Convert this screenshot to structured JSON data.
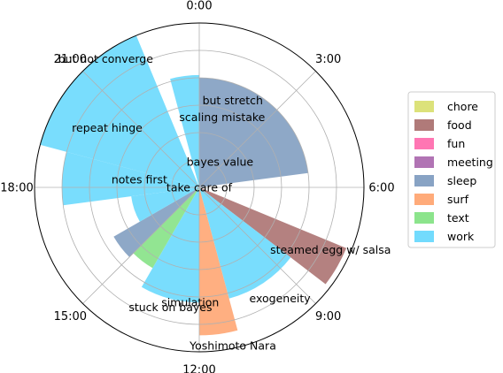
{
  "chart_data": {
    "type": "polar-bar",
    "title": "",
    "hour_labels": [
      "0:00",
      "3:00",
      "6:00",
      "9:00",
      "12:00",
      "15:00",
      "18:00",
      "21:00"
    ],
    "radial_ticks": [
      1,
      2,
      3,
      4,
      5
    ],
    "rmax": 6,
    "grid": true,
    "legend_position": "right",
    "categories": [
      {
        "name": "chore",
        "color": "#dce27a"
      },
      {
        "name": "food",
        "color": "#b07a79"
      },
      {
        "name": "fun",
        "color": "#ff76b3"
      },
      {
        "name": "meeting",
        "color": "#b174b4"
      },
      {
        "name": "sleep",
        "color": "#88a3c4"
      },
      {
        "name": "surf",
        "color": "#ffab7a"
      },
      {
        "name": "text",
        "color": "#8ce48c"
      },
      {
        "name": "work",
        "color": "#72dbfd"
      }
    ],
    "wedges": [
      {
        "start_hour": 0,
        "end_hour": 5.5,
        "r": 4,
        "category": "sleep"
      },
      {
        "start_hour": 7.5,
        "end_hour": 8.5,
        "r": 5.8,
        "category": "food"
      },
      {
        "start_hour": 8.5,
        "end_hour": 11,
        "r": 4.2,
        "category": "work"
      },
      {
        "start_hour": 11,
        "end_hour": 12,
        "r": 5.4,
        "category": "surf"
      },
      {
        "start_hour": 12,
        "end_hour": 14,
        "r": 4.2,
        "category": "work"
      },
      {
        "start_hour": 14,
        "end_hour": 15,
        "r": 3.4,
        "category": "text"
      },
      {
        "start_hour": 15,
        "end_hour": 16,
        "r": 3.6,
        "category": "sleep"
      },
      {
        "start_hour": 16,
        "end_hour": 17.5,
        "r": 2.5,
        "category": "work"
      },
      {
        "start_hour": 17.5,
        "end_hour": 19,
        "r": 5,
        "category": "work"
      },
      {
        "start_hour": 19,
        "end_hour": 22.5,
        "r": 7,
        "category": "work"
      },
      {
        "start_hour": 23,
        "end_hour": 24,
        "r": 4.1,
        "category": "work"
      }
    ],
    "annotations": [
      {
        "text": "but not converge",
        "hour": 21.6,
        "r": 5.8
      },
      {
        "text": "repeat hinge",
        "hour": 20.2,
        "r": 4.0
      },
      {
        "text": "but stretch",
        "hour": 1.4,
        "r": 3.4
      },
      {
        "text": "scaling mistake",
        "hour": 1.2,
        "r": 2.7
      },
      {
        "text": "bayes value",
        "hour": 2.6,
        "r": 1.2
      },
      {
        "text": "notes first",
        "hour": 18.5,
        "r": 2.2
      },
      {
        "text": "take care of",
        "hour": 3.6,
        "r": 0.0
      },
      {
        "text": "steamed egg w/ salsa",
        "hour": 7.7,
        "r": 5.3
      },
      {
        "text": "exogeneity",
        "hour": 9.6,
        "r": 5.0
      },
      {
        "text": "simulation",
        "hour": 12.3,
        "r": 4.2
      },
      {
        "text": "stuck on bayes",
        "hour": 12.9,
        "r": 4.5
      },
      {
        "text": "Yoshimoto Nara",
        "hour": 11.2,
        "r": 5.9
      }
    ]
  }
}
